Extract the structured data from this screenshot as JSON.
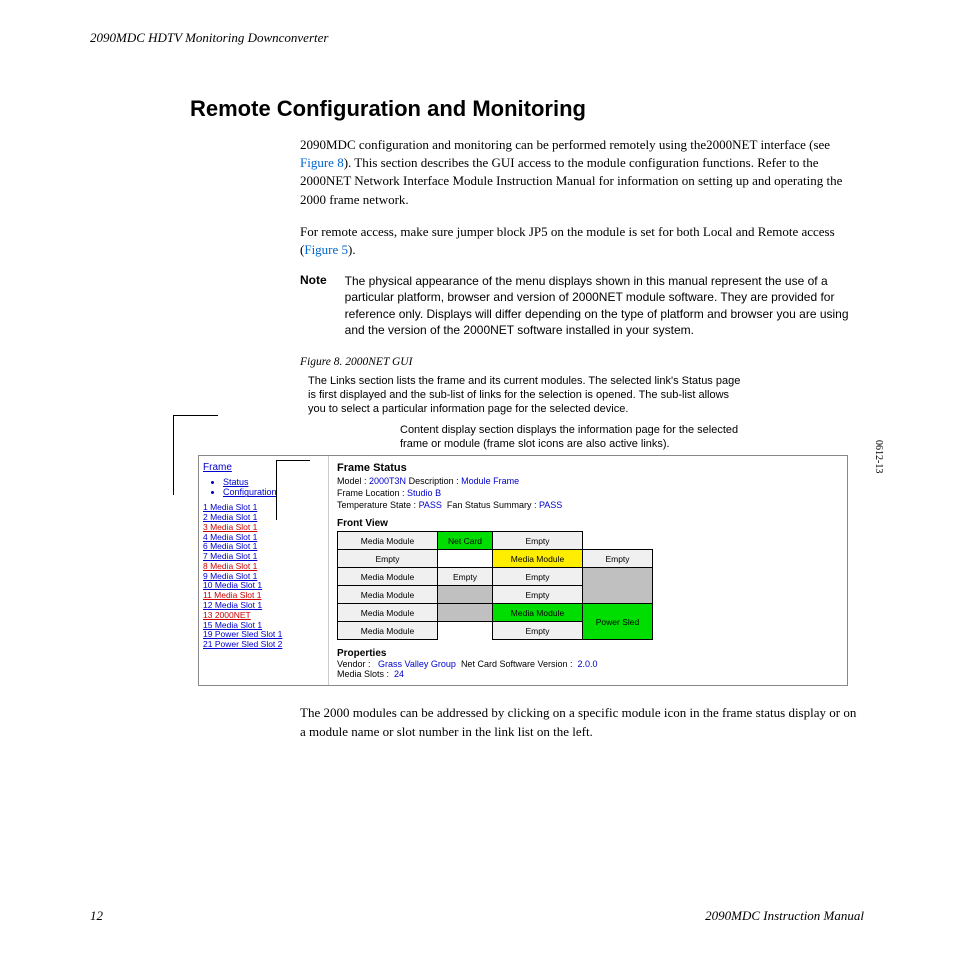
{
  "header": "2090MDC HDTV Monitoring Downconverter",
  "heading": "Remote Configuration and Monitoring",
  "para1a": "2090MDC configuration and monitoring can be performed remotely using the2000NET interface (see ",
  "para1_link": "Figure 8",
  "para1b": "). This section describes the GUI access to the module configuration functions. Refer to the 2000NET Network Interface Module Instruction Manual for information on setting up and operating the 2000 frame network.",
  "para2a": "For remote access, make sure jumper block JP5 on the module is set for both Local and Remote access (",
  "para2_link": "Figure 5",
  "para2b": ").",
  "note_label": "Note",
  "note_text": "The physical appearance of the menu displays shown in this manual represent the use of a particular platform, browser and version of 2000NET module software. They are provided for reference only. Displays will differ depending on the type of platform and browser you are using and the version of the 2000NET software installed in your system.",
  "fig_caption": "Figure 8.  2000NET GUI",
  "callout1": "The Links section lists the frame and its current modules. The selected link's Status page is first displayed and the sub-list of links for the selection is opened. The sub-list allows you to select a particular information page for the selected device.",
  "callout2": "Content display section displays the information page for the selected frame or module (frame slot icons are also active links).",
  "side_code": "0612-13",
  "gui": {
    "frame_link": "Frame",
    "bullets": [
      "Status",
      "Configuration"
    ],
    "slots": [
      {
        "t": "1 Media Slot 1",
        "red": false
      },
      {
        "t": "2 Media Slot 1",
        "red": false
      },
      {
        "t": "3 Media Slot 1",
        "red": true
      },
      {
        "t": "4 Media Slot 1",
        "red": false
      },
      {
        "t": "6 Media Slot 1",
        "red": false
      },
      {
        "t": "7 Media Slot 1",
        "red": false
      },
      {
        "t": "8 Media Slot 1",
        "red": true
      },
      {
        "t": "9 Media Slot 1",
        "red": false
      },
      {
        "t": "10 Media Slot 1",
        "red": false
      },
      {
        "t": "11 Media Slot 1",
        "red": true
      },
      {
        "t": "12 Media Slot 1",
        "red": false
      },
      {
        "t": "13 2000NET",
        "red": true
      },
      {
        "t": "15 Media Slot 1",
        "red": false
      },
      {
        "t": "19 Power Sled Slot 1",
        "red": false
      },
      {
        "t": "21 Power Sled Slot 2",
        "red": false
      }
    ],
    "fs_title": "Frame Status",
    "fs_model_label": "Model :",
    "fs_model": "2000T3N",
    "fs_desc_label": "Description :",
    "fs_desc": "Module Frame",
    "fs_loc_label": "Frame Location :",
    "fs_loc": "Studio B",
    "fs_temp_label": "Temperature State :",
    "fs_temp": "PASS",
    "fs_fan_label": "Fan Status Summary :",
    "fs_fan": "PASS",
    "fv_label": "Front View",
    "grid": [
      [
        {
          "t": "Media Module",
          "c": "w1"
        },
        {
          "t": "Net Card",
          "c": "w2 green"
        },
        {
          "t": "Empty",
          "c": "w3"
        },
        {
          "t": "",
          "c": "noborder w4",
          "rs": 1
        }
      ],
      [
        {
          "t": "Empty",
          "c": "w1"
        },
        {
          "t": "",
          "c": "noborder w2"
        },
        {
          "t": "Media Module",
          "c": "w3 yellow"
        },
        {
          "t": "Empty",
          "c": "w4",
          "rs": 1
        }
      ],
      [
        {
          "t": "Media Module",
          "c": "w1"
        },
        {
          "t": "Empty",
          "c": "w2"
        },
        {
          "t": "Empty",
          "c": "w3"
        },
        {
          "t": "",
          "c": "w4 gray",
          "rs": 2
        }
      ],
      [
        {
          "t": "Media Module",
          "c": "w1"
        },
        {
          "t": "",
          "c": "w2 gray"
        },
        {
          "t": "Empty",
          "c": "w3"
        }
      ],
      [
        {
          "t": "Media Module",
          "c": "w1"
        },
        {
          "t": "",
          "c": "w2 gray"
        },
        {
          "t": "Media Module",
          "c": "w3 green"
        },
        {
          "t": "Power Sled",
          "c": "w4 green",
          "rs": 2
        }
      ],
      [
        {
          "t": "Media Module",
          "c": "w1"
        },
        {
          "t": "",
          "c": "noborder w2"
        },
        {
          "t": "Empty",
          "c": "w3"
        }
      ]
    ],
    "props_title": "Properties",
    "props_vendor_label": "Vendor :",
    "props_vendor": "Grass Valley Group",
    "props_ver_label": "Net Card Software Version :",
    "props_ver": "2.0.0",
    "props_slots_label": "Media Slots :",
    "props_slots": "24"
  },
  "para3": "The 2000 modules can be addressed by clicking on a specific module icon in the frame status display or on a module name or slot number in the link list on the left.",
  "footer_page": "12",
  "footer_doc": "2090MDC Instruction Manual"
}
